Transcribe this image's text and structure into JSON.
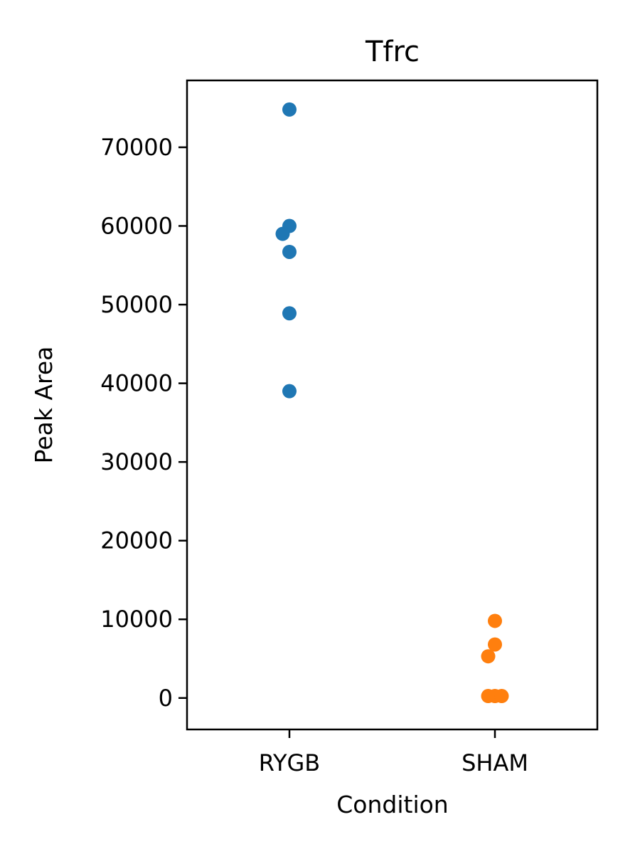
{
  "chart_data": {
    "type": "scatter",
    "title": "Tfrc",
    "xlabel": "Condition",
    "ylabel": "Peak Area",
    "categories": [
      "RYGB",
      "SHAM"
    ],
    "ylim": [
      -4000,
      78500
    ],
    "yticks": [
      0,
      10000,
      20000,
      30000,
      40000,
      50000,
      60000,
      70000
    ],
    "ytick_labels": [
      "0",
      "10000",
      "20000",
      "30000",
      "40000",
      "50000",
      "60000",
      "70000"
    ],
    "grid": false,
    "series": [
      {
        "category": "RYGB",
        "color": "#1f77b4",
        "values": [
          74800,
          60000,
          59000,
          56700,
          48900,
          39000
        ]
      },
      {
        "category": "SHAM",
        "color": "#ff7f0e",
        "values": [
          9800,
          6800,
          5300,
          250,
          250,
          250
        ]
      }
    ]
  }
}
